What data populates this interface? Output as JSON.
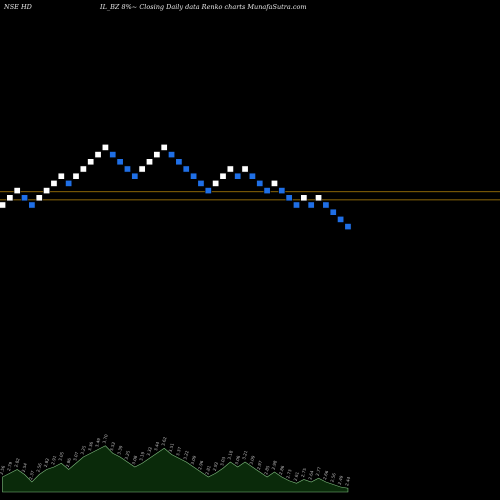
{
  "header": {
    "symbol": "NSE HD",
    "subtitle": "IL_BZ 8%~ Closing Daily data Renko charts MunafaSutra.com"
  },
  "chart_data": {
    "type": "renko",
    "box_size_percent": 8,
    "colors": {
      "up_brick": "#ffffff",
      "down_brick": "#1f6fe6",
      "brick_border": "#000000",
      "level_line": "#b8860b",
      "volume_fill": "#0a2a0a",
      "volume_stroke": "#7fbf7f",
      "volume_label": "#b8b8b8"
    },
    "levels": [
      1.2,
      0
    ],
    "bricks": [
      {
        "dir": "up",
        "y": 0
      },
      {
        "dir": "up",
        "y": 1
      },
      {
        "dir": "up",
        "y": 2
      },
      {
        "dir": "down",
        "y": 1
      },
      {
        "dir": "down",
        "y": 0
      },
      {
        "dir": "up",
        "y": 1
      },
      {
        "dir": "up",
        "y": 2
      },
      {
        "dir": "up",
        "y": 3
      },
      {
        "dir": "up",
        "y": 4
      },
      {
        "dir": "down",
        "y": 3
      },
      {
        "dir": "up",
        "y": 4
      },
      {
        "dir": "up",
        "y": 5
      },
      {
        "dir": "up",
        "y": 6
      },
      {
        "dir": "up",
        "y": 7
      },
      {
        "dir": "up",
        "y": 8
      },
      {
        "dir": "down",
        "y": 7
      },
      {
        "dir": "down",
        "y": 6
      },
      {
        "dir": "down",
        "y": 5
      },
      {
        "dir": "down",
        "y": 4
      },
      {
        "dir": "up",
        "y": 5
      },
      {
        "dir": "up",
        "y": 6
      },
      {
        "dir": "up",
        "y": 7
      },
      {
        "dir": "up",
        "y": 8
      },
      {
        "dir": "down",
        "y": 7
      },
      {
        "dir": "down",
        "y": 6
      },
      {
        "dir": "down",
        "y": 5
      },
      {
        "dir": "down",
        "y": 4
      },
      {
        "dir": "down",
        "y": 3
      },
      {
        "dir": "down",
        "y": 2
      },
      {
        "dir": "up",
        "y": 3
      },
      {
        "dir": "up",
        "y": 4
      },
      {
        "dir": "up",
        "y": 5
      },
      {
        "dir": "down",
        "y": 4
      },
      {
        "dir": "up",
        "y": 5
      },
      {
        "dir": "down",
        "y": 4
      },
      {
        "dir": "down",
        "y": 3
      },
      {
        "dir": "down",
        "y": 2
      },
      {
        "dir": "up",
        "y": 3
      },
      {
        "dir": "down",
        "y": 2
      },
      {
        "dir": "down",
        "y": 1
      },
      {
        "dir": "down",
        "y": 0
      },
      {
        "dir": "up",
        "y": 1
      },
      {
        "dir": "down",
        "y": 0
      },
      {
        "dir": "up",
        "y": 1
      },
      {
        "dir": "down",
        "y": 0
      },
      {
        "dir": "down",
        "y": -1
      },
      {
        "dir": "down",
        "y": -2
      },
      {
        "dir": "down",
        "y": -3
      }
    ],
    "volume": [
      {
        "v": 12,
        "label": "2.56"
      },
      {
        "v": 15,
        "label": "2.79"
      },
      {
        "v": 18,
        "label": "2.82"
      },
      {
        "v": 14,
        "label": "2.54"
      },
      {
        "v": 8,
        "label": "2.37"
      },
      {
        "v": 14,
        "label": "2.56"
      },
      {
        "v": 18,
        "label": "2.82"
      },
      {
        "v": 20,
        "label": "2.91"
      },
      {
        "v": 23,
        "label": "3.05"
      },
      {
        "v": 18,
        "label": "2.86"
      },
      {
        "v": 23,
        "label": "3.07"
      },
      {
        "v": 28,
        "label": "3.25"
      },
      {
        "v": 31,
        "label": "3.36"
      },
      {
        "v": 34,
        "label": "3.49"
      },
      {
        "v": 37,
        "label": "3.70"
      },
      {
        "v": 31,
        "label": "3.52"
      },
      {
        "v": 28,
        "label": "3.39"
      },
      {
        "v": 24,
        "label": "3.25"
      },
      {
        "v": 20,
        "label": "3.08"
      },
      {
        "v": 23,
        "label": "3.19"
      },
      {
        "v": 27,
        "label": "3.32"
      },
      {
        "v": 31,
        "label": "3.44"
      },
      {
        "v": 35,
        "label": "3.62"
      },
      {
        "v": 30,
        "label": "3.51"
      },
      {
        "v": 27,
        "label": "3.37"
      },
      {
        "v": 24,
        "label": "3.22"
      },
      {
        "v": 20,
        "label": "3.09"
      },
      {
        "v": 16,
        "label": "2.96"
      },
      {
        "v": 12,
        "label": "2.81"
      },
      {
        "v": 15,
        "label": "2.92"
      },
      {
        "v": 19,
        "label": "3.03"
      },
      {
        "v": 24,
        "label": "3.18"
      },
      {
        "v": 20,
        "label": "3.06"
      },
      {
        "v": 24,
        "label": "3.21"
      },
      {
        "v": 20,
        "label": "3.09"
      },
      {
        "v": 16,
        "label": "2.97"
      },
      {
        "v": 12,
        "label": "2.85"
      },
      {
        "v": 16,
        "label": "2.98"
      },
      {
        "v": 12,
        "label": "2.86"
      },
      {
        "v": 9,
        "label": "2.73"
      },
      {
        "v": 7,
        "label": "2.61"
      },
      {
        "v": 10,
        "label": "2.75"
      },
      {
        "v": 8,
        "label": "2.64"
      },
      {
        "v": 11,
        "label": "2.77"
      },
      {
        "v": 8,
        "label": "2.66"
      },
      {
        "v": 6,
        "label": "2.56"
      },
      {
        "v": 4,
        "label": "2.49"
      },
      {
        "v": 3,
        "label": "2.44"
      }
    ]
  }
}
